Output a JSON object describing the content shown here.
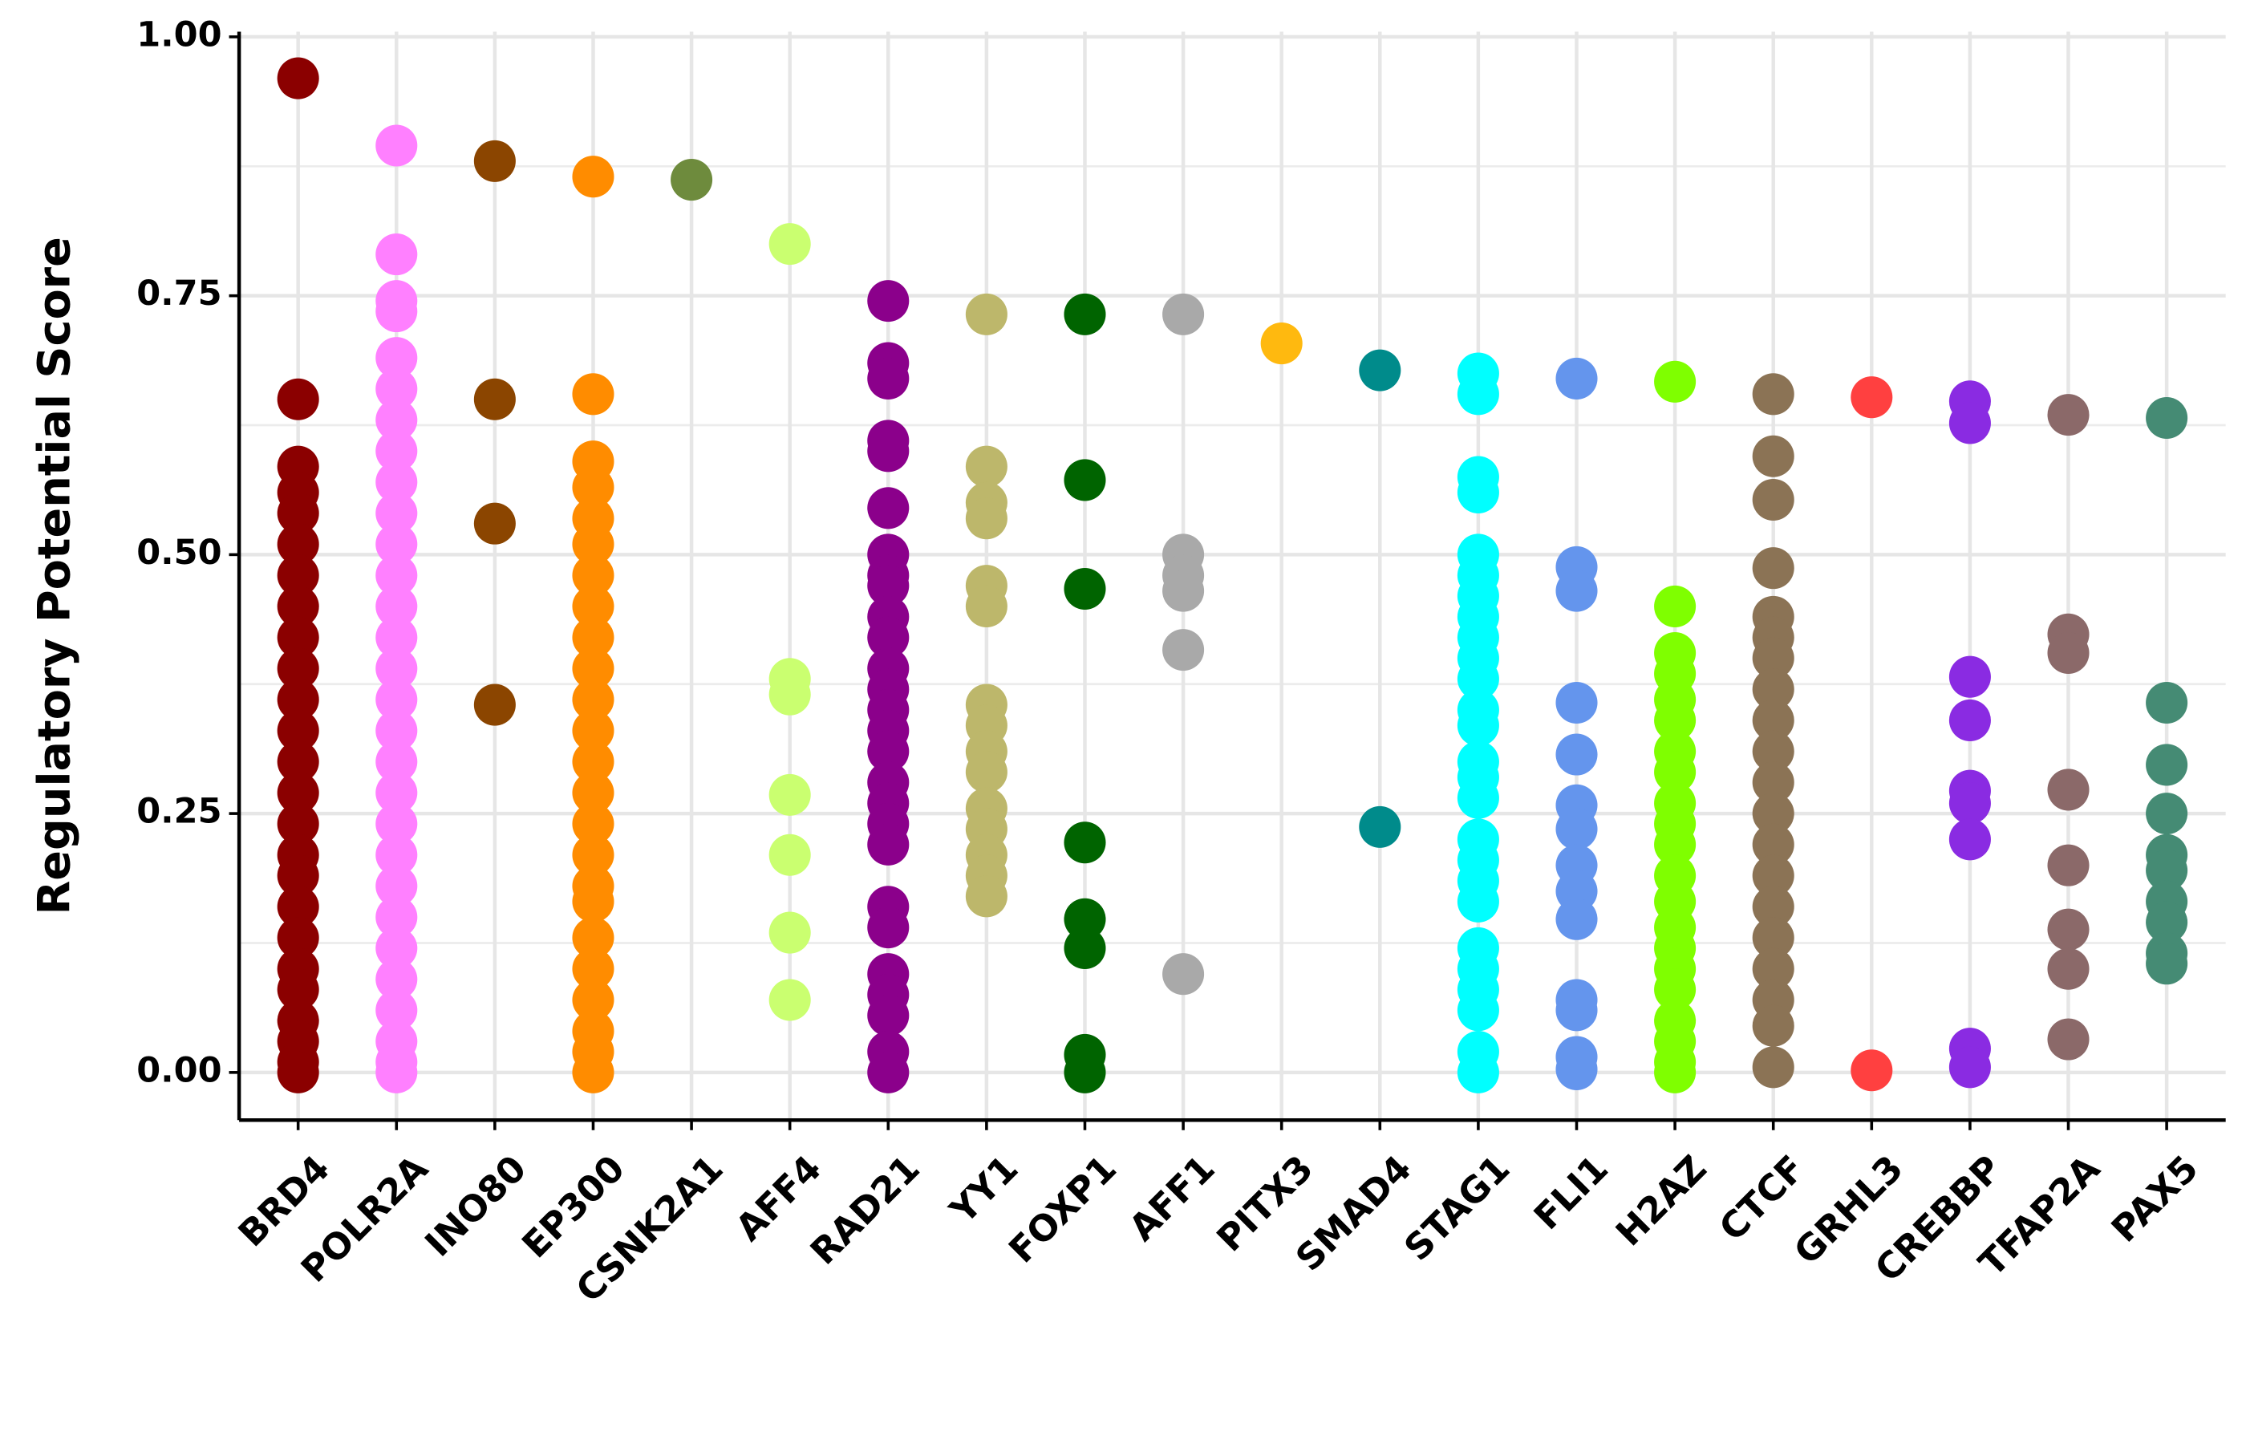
{
  "chart_data": {
    "type": "strip",
    "y_label": "Regulatory Potential Score",
    "categories": [
      "BRD4",
      "POLR2A",
      "INO80",
      "EP300",
      "CSNK2A1",
      "AFF4",
      "RAD21",
      "YY1",
      "FOXP1",
      "AFF1",
      "PITX3",
      "SMAD4",
      "STAG1",
      "FLI1",
      "H2AZ",
      "CTCF",
      "GRHL3",
      "CREBBP",
      "TFAP2A",
      "PAX5"
    ],
    "colors": [
      "#8b0000",
      "#ff80ff",
      "#8b4500",
      "#ff8c00",
      "#6e8b3d",
      "#caff70",
      "#8b008b",
      "#bdb76b",
      "#006400",
      "#a9a9a9",
      "#ffb90f",
      "#008b8b",
      "#00ffff",
      "#6495ed",
      "#7fff00",
      "#8b7355",
      "#ff4040",
      "#8a2be2",
      "#8b6969",
      "#458b74"
    ],
    "values": [
      [
        0.96,
        0.65,
        0.585,
        0.56,
        0.54,
        0.51,
        0.48,
        0.45,
        0.42,
        0.39,
        0.36,
        0.33,
        0.3,
        0.27,
        0.24,
        0.21,
        0.19,
        0.16,
        0.13,
        0.1,
        0.08,
        0.05,
        0.03,
        0.01,
        0
      ],
      [
        0.895,
        0.79,
        0.745,
        0.735,
        0.69,
        0.66,
        0.63,
        0.6,
        0.57,
        0.54,
        0.51,
        0.48,
        0.45,
        0.42,
        0.39,
        0.36,
        0.33,
        0.3,
        0.27,
        0.24,
        0.21,
        0.18,
        0.15,
        0.12,
        0.09,
        0.06,
        0.03,
        0.01,
        0
      ],
      [
        0.88,
        0.65,
        0.53,
        0.355
      ],
      [
        0.865,
        0.655,
        0.59,
        0.565,
        0.535,
        0.51,
        0.48,
        0.45,
        0.42,
        0.39,
        0.36,
        0.33,
        0.3,
        0.27,
        0.24,
        0.21,
        0.18,
        0.165,
        0.13,
        0.1,
        0.07,
        0.04,
        0.02,
        0
      ],
      [
        0.862
      ],
      [
        0.8,
        0.38,
        0.365,
        0.268,
        0.21,
        0.135,
        0.07
      ],
      [
        0.745,
        0.685,
        0.67,
        0.61,
        0.6,
        0.545,
        0.5,
        0.48,
        0.47,
        0.44,
        0.42,
        0.39,
        0.37,
        0.35,
        0.33,
        0.31,
        0.28,
        0.26,
        0.24,
        0.22,
        0.16,
        0.14,
        0.095,
        0.075,
        0.055,
        0.02,
        0
      ],
      [
        0.732,
        0.585,
        0.55,
        0.535,
        0.47,
        0.45,
        0.355,
        0.335,
        0.31,
        0.29,
        0.255,
        0.235,
        0.21,
        0.19,
        0.17
      ],
      [
        0.732,
        0.572,
        0.467,
        0.222,
        0.148,
        0.12,
        0.017,
        0
      ],
      [
        0.732,
        0.5,
        0.48,
        0.465,
        0.408,
        0.095
      ],
      [
        0.704
      ],
      [
        0.678,
        0.237
      ],
      [
        0.675,
        0.655,
        0.575,
        0.56,
        0.5,
        0.48,
        0.46,
        0.44,
        0.42,
        0.4,
        0.38,
        0.35,
        0.335,
        0.3,
        0.285,
        0.265,
        0.225,
        0.205,
        0.185,
        0.165,
        0.12,
        0.1,
        0.08,
        0.06,
        0.02,
        0
      ],
      [
        0.67,
        0.488,
        0.465,
        0.357,
        0.307,
        0.258,
        0.235,
        0.2,
        0.175,
        0.148,
        0.07,
        0.06,
        0.015,
        0.003
      ],
      [
        0.667,
        0.45,
        0.405,
        0.385,
        0.36,
        0.34,
        0.31,
        0.29,
        0.26,
        0.24,
        0.22,
        0.19,
        0.165,
        0.14,
        0.12,
        0.1,
        0.08,
        0.05,
        0.03,
        0.01,
        0
      ],
      [
        0.655,
        0.595,
        0.553,
        0.487,
        0.44,
        0.42,
        0.4,
        0.37,
        0.34,
        0.31,
        0.28,
        0.25,
        0.22,
        0.19,
        0.16,
        0.13,
        0.1,
        0.07,
        0.045,
        0.005
      ],
      [
        0.652,
        0.002
      ],
      [
        0.648,
        0.627,
        0.382,
        0.34,
        0.272,
        0.26,
        0.225,
        0.023,
        0.005
      ],
      [
        0.635,
        0.423,
        0.405,
        0.273,
        0.2,
        0.138,
        0.1,
        0.032
      ],
      [
        0.632,
        0.357,
        0.297,
        0.25,
        0.21,
        0.195,
        0.165,
        0.145,
        0.115,
        0.105
      ]
    ],
    "ylim": [
      -0.046,
      1.005
    ],
    "yticks": [
      {
        "value": 0,
        "label": "0.00"
      },
      {
        "value": 0.25,
        "label": "0.25"
      },
      {
        "value": 0.5,
        "label": "0.50"
      },
      {
        "value": 0.75,
        "label": "0.75"
      },
      {
        "value": 1,
        "label": "1.00"
      }
    ],
    "grid": true
  }
}
